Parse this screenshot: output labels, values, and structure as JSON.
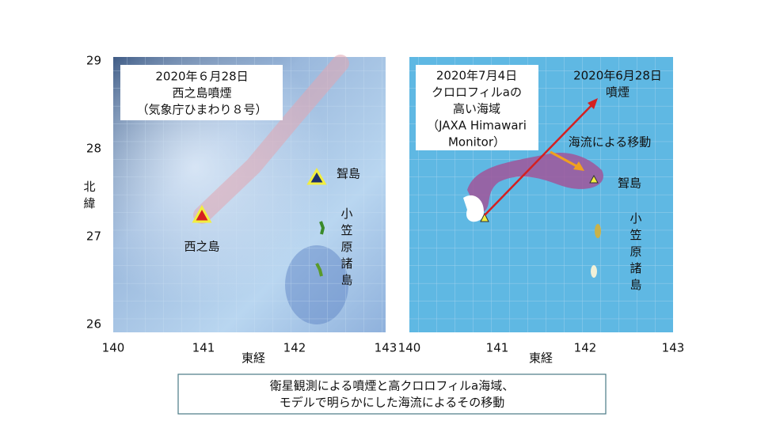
{
  "left_panel": {
    "title_lines": [
      "2020年６月28日",
      "西之島噴煙",
      "（気象庁ひまわり８号）"
    ],
    "labels": {
      "nishinoshima": "西之島",
      "mukojima": "聟島",
      "ogasawara": "小笠原諸島"
    },
    "x_ticks": [
      "140",
      "141",
      "142",
      "143"
    ],
    "x_label": "東経",
    "y_ticks": [
      "29",
      "28",
      "27",
      "26"
    ],
    "y_label": "北緯"
  },
  "right_panel": {
    "title_lines": [
      "2020年7月4日",
      "クロロフィルaの",
      "高い海域",
      "（JAXA Himawari",
      "Monitor）"
    ],
    "plume_lines": [
      "2020年6月28日",
      "噴煙"
    ],
    "current_label": "海流による移動",
    "labels": {
      "mukojima": "聟島",
      "ogasawara": "小笠原諸島"
    },
    "x_ticks": [
      "140",
      "141",
      "142",
      "143"
    ],
    "x_label": "東経"
  },
  "caption_lines": [
    "衛星観測による噴煙と高クロロフィルa海域、",
    "モデルで明らかにした海流によるその移動"
  ]
}
